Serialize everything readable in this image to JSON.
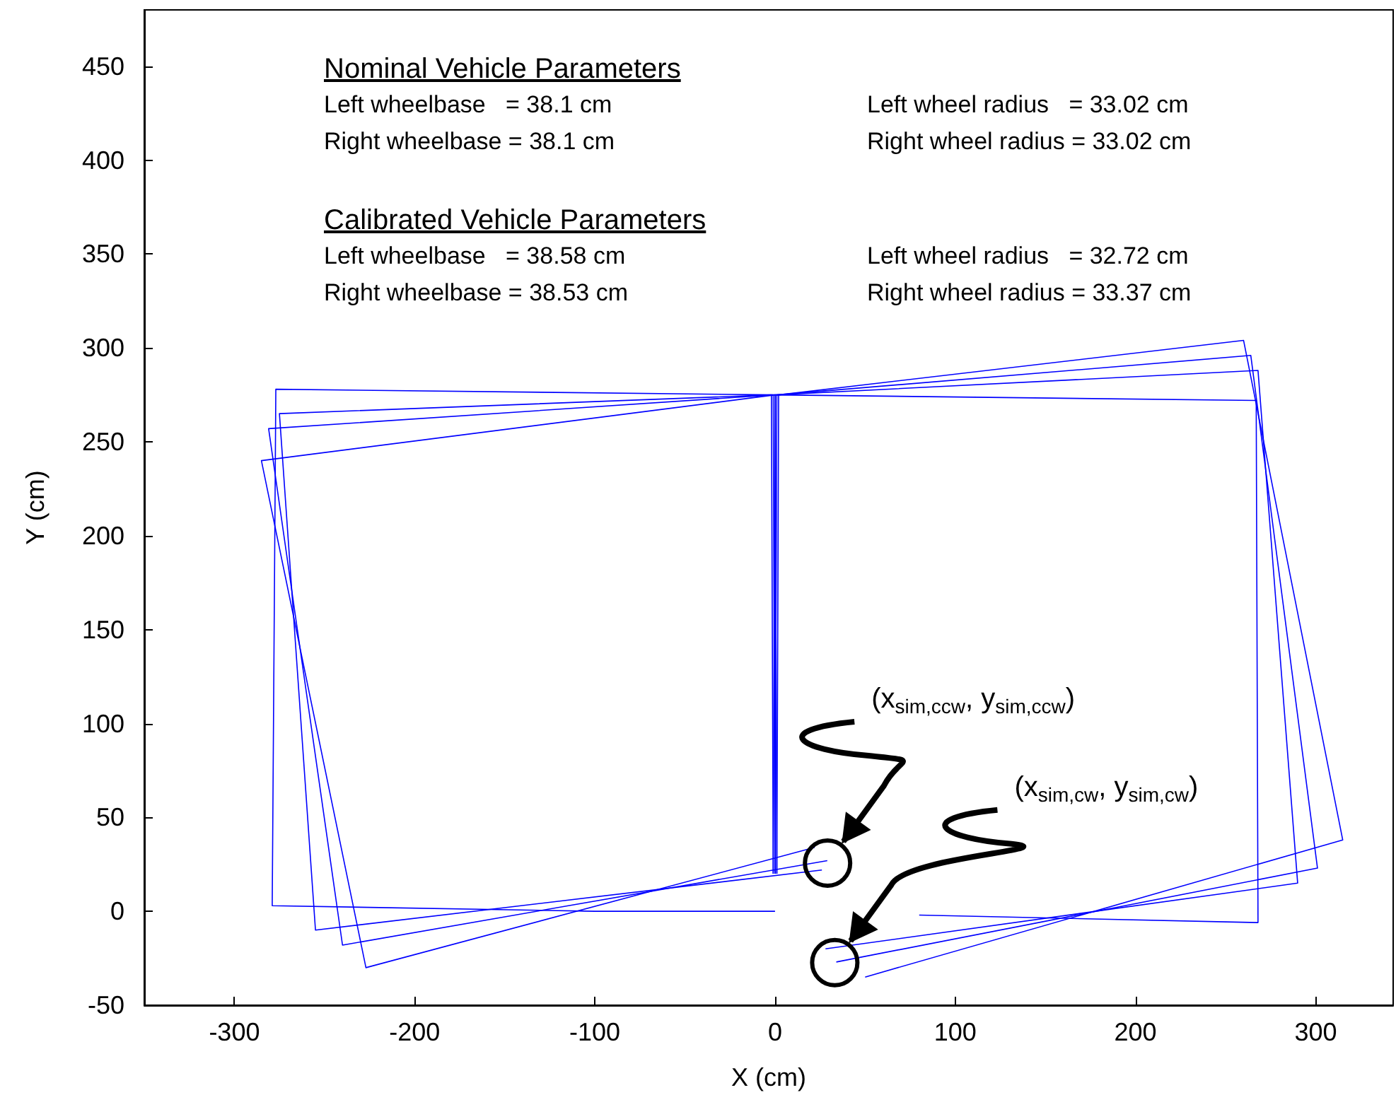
{
  "chart_data": {
    "type": "line",
    "xlabel": "X (cm)",
    "ylabel": "Y (cm)",
    "xlim": [
      -350,
      343
    ],
    "ylim": [
      -50,
      480
    ],
    "xticks": [
      -300,
      -200,
      -100,
      0,
      100,
      200,
      300
    ],
    "yticks": [
      -50,
      0,
      50,
      100,
      150,
      200,
      250,
      300,
      350,
      400,
      450
    ],
    "grid": false,
    "marker": "none",
    "line_style": "solid",
    "series": [
      {
        "color": "#0000ff",
        "x": [
          0,
          0,
          -277,
          -279,
          -100,
          0
        ],
        "values": [
          20,
          275,
          278,
          3,
          0,
          0
        ]
      },
      {
        "color": "#0000ff",
        "x": [
          0,
          -1,
          -281,
          -240,
          29
        ],
        "values": [
          20,
          275,
          257,
          -18,
          27
        ]
      },
      {
        "color": "#0000ff",
        "x": [
          1,
          0,
          -285,
          -227,
          22
        ],
        "values": [
          20,
          275,
          240,
          -30,
          34
        ]
      },
      {
        "color": "#0000ff",
        "x": [
          -1,
          -2,
          -275,
          -255,
          26
        ],
        "values": [
          20,
          275,
          265,
          -10,
          22
        ]
      },
      {
        "color": "#0000ff",
        "x": [
          0,
          0,
          267,
          268,
          80
        ],
        "values": [
          20,
          275,
          272,
          -6,
          -2
        ]
      },
      {
        "color": "#0000ff",
        "x": [
          0,
          1,
          264,
          301,
          34
        ],
        "values": [
          20,
          275,
          296,
          23,
          -27
        ]
      },
      {
        "color": "#0000ff",
        "x": [
          1,
          2,
          260,
          315,
          50
        ],
        "values": [
          20,
          275,
          304,
          38,
          -35
        ]
      },
      {
        "color": "#0000ff",
        "x": [
          -1,
          0,
          268,
          290,
          28
        ],
        "values": [
          20,
          275,
          288,
          15,
          -20
        ]
      }
    ],
    "annotations": [
      "Nominal Vehicle Parameters",
      "Left wheelbase   = 38.1 cm",
      "Left wheel radius   = 33.02 cm",
      "Right wheelbase = 38.1 cm",
      "Right wheel radius = 33.02 cm",
      "Calibrated Vehicle Parameters",
      "Left wheelbase   = 38.58 cm",
      "Left wheel radius   = 32.72 cm",
      "Right wheelbase = 38.53 cm",
      "Right wheel radius = 33.37 cm",
      {
        "text": "(x$_{sim,ccw}$, y$_{sim,ccw}$)",
        "x": 37,
        "y": 36
      },
      {
        "text": "(x$_{sim,cw}$, y$_{sim,cw}$)",
        "x": 41,
        "y": -17
      }
    ]
  }
}
